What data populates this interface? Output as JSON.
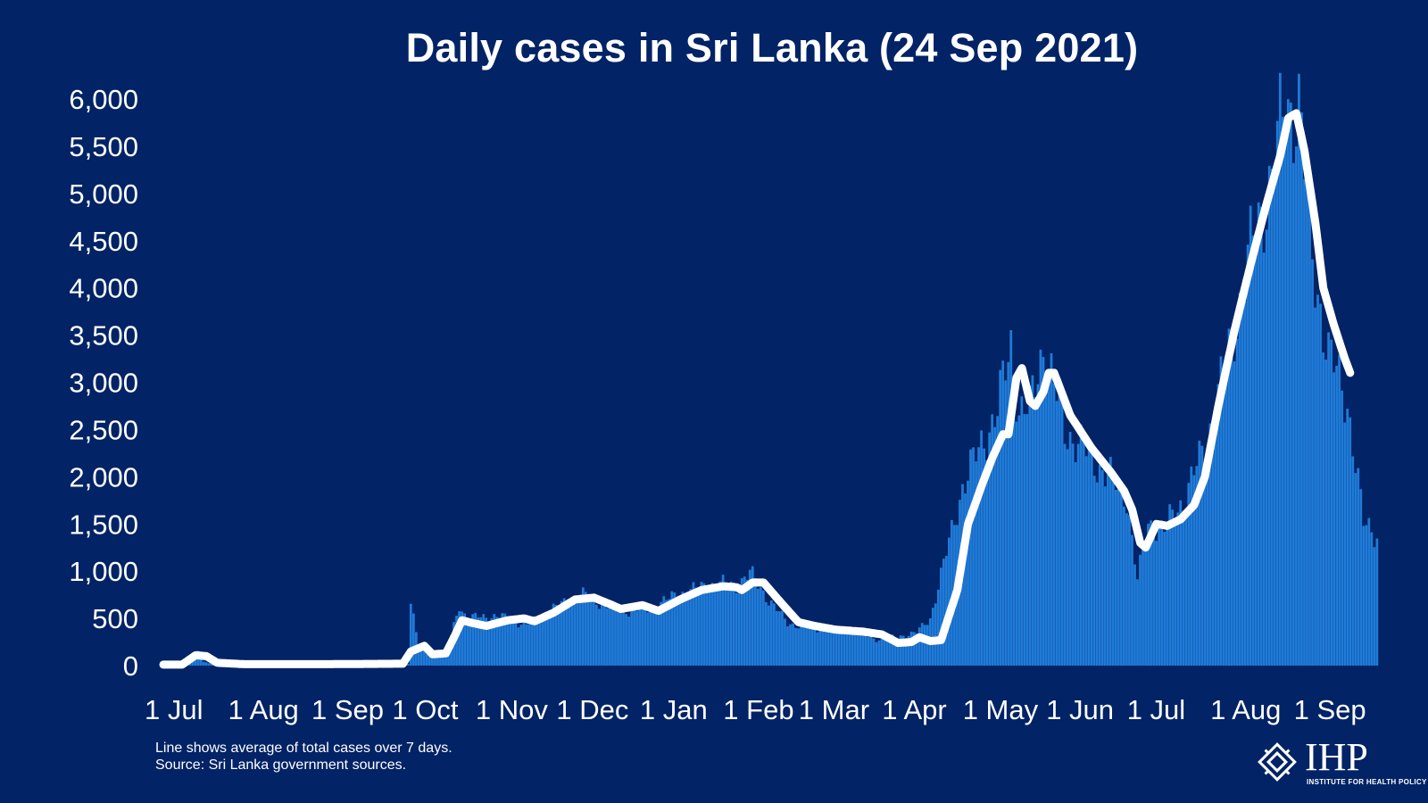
{
  "chart_data": {
    "type": "bar",
    "title": "Daily cases in Sri Lanka (24 Sep 2021)",
    "xlabel": "",
    "ylabel": "",
    "ylim": [
      0,
      6000
    ],
    "yticks": [
      "0",
      "500",
      "1,000",
      "1,500",
      "2,000",
      "2,500",
      "3,000",
      "3,500",
      "4,000",
      "4,500",
      "5,000",
      "5,500",
      "6,000"
    ],
    "xticks": [
      "1 Jul",
      "1 Aug",
      "1 Sep",
      "1 Oct",
      "1 Nov",
      "1 Dec",
      "1 Jan",
      "1 Feb",
      "1 Mar",
      "1 Apr",
      "1 May",
      "1 Jun",
      "1 Jul",
      "1 Aug",
      "1 Sep"
    ],
    "x_start": "2020-07-01",
    "x_end": "2021-09-24",
    "month_start_days": [
      0,
      31,
      62,
      92,
      123,
      153,
      184,
      215,
      243,
      274,
      304,
      335,
      365,
      396,
      427
    ],
    "total_days": 451,
    "series": [
      {
        "name": "Daily cases",
        "kind": "bars",
        "knots": [
          [
            0,
            10
          ],
          [
            10,
            60
          ],
          [
            13,
            150
          ],
          [
            15,
            40
          ],
          [
            20,
            8
          ],
          [
            60,
            10
          ],
          [
            91,
            20
          ],
          [
            92,
            700
          ],
          [
            95,
            150
          ],
          [
            100,
            170
          ],
          [
            105,
            100
          ],
          [
            110,
            650
          ],
          [
            113,
            480
          ],
          [
            117,
            520
          ],
          [
            125,
            520
          ],
          [
            135,
            430
          ],
          [
            145,
            600
          ],
          [
            155,
            760
          ],
          [
            170,
            580
          ],
          [
            180,
            600
          ],
          [
            192,
            760
          ],
          [
            205,
            870
          ],
          [
            213,
            850
          ],
          [
            218,
            980
          ],
          [
            225,
            700
          ],
          [
            232,
            450
          ],
          [
            245,
            380
          ],
          [
            255,
            380
          ],
          [
            265,
            280
          ],
          [
            272,
            300
          ],
          [
            280,
            350
          ],
          [
            285,
            500
          ],
          [
            292,
            1300
          ],
          [
            297,
            1900
          ],
          [
            305,
            2400
          ],
          [
            310,
            2700
          ],
          [
            315,
            3400
          ],
          [
            318,
            2700
          ],
          [
            322,
            2700
          ],
          [
            327,
            3400
          ],
          [
            335,
            2500
          ],
          [
            345,
            2200
          ],
          [
            358,
            1800
          ],
          [
            362,
            900
          ],
          [
            366,
            1500
          ],
          [
            372,
            1450
          ],
          [
            380,
            1800
          ],
          [
            388,
            2400
          ],
          [
            395,
            3200
          ],
          [
            405,
            4500
          ],
          [
            412,
            5200
          ],
          [
            417,
            5900
          ],
          [
            422,
            5950
          ],
          [
            427,
            4300
          ],
          [
            433,
            3300
          ],
          [
            440,
            2800
          ],
          [
            446,
            1500
          ],
          [
            451,
            1400
          ]
        ]
      },
      {
        "name": "7-day average",
        "kind": "line",
        "knots": [
          [
            0,
            10
          ],
          [
            7,
            10
          ],
          [
            12,
            110
          ],
          [
            16,
            100
          ],
          [
            20,
            30
          ],
          [
            30,
            15
          ],
          [
            60,
            15
          ],
          [
            89,
            20
          ],
          [
            92,
            150
          ],
          [
            97,
            210
          ],
          [
            100,
            120
          ],
          [
            105,
            130
          ],
          [
            108,
            300
          ],
          [
            111,
            480
          ],
          [
            115,
            450
          ],
          [
            120,
            420
          ],
          [
            128,
            480
          ],
          [
            134,
            500
          ],
          [
            138,
            470
          ],
          [
            145,
            560
          ],
          [
            153,
            700
          ],
          [
            160,
            720
          ],
          [
            166,
            650
          ],
          [
            170,
            600
          ],
          [
            178,
            640
          ],
          [
            184,
            580
          ],
          [
            192,
            700
          ],
          [
            200,
            800
          ],
          [
            208,
            840
          ],
          [
            213,
            830
          ],
          [
            215,
            800
          ],
          [
            219,
            880
          ],
          [
            223,
            880
          ],
          [
            230,
            650
          ],
          [
            236,
            460
          ],
          [
            242,
            420
          ],
          [
            250,
            380
          ],
          [
            260,
            360
          ],
          [
            267,
            330
          ],
          [
            273,
            240
          ],
          [
            278,
            250
          ],
          [
            281,
            300
          ],
          [
            285,
            260
          ],
          [
            289,
            270
          ],
          [
            295,
            800
          ],
          [
            299,
            1500
          ],
          [
            304,
            1900
          ],
          [
            308,
            2200
          ],
          [
            312,
            2450
          ],
          [
            314,
            2450
          ],
          [
            317,
            3050
          ],
          [
            319,
            3150
          ],
          [
            322,
            2800
          ],
          [
            324,
            2750
          ],
          [
            327,
            2900
          ],
          [
            329,
            3100
          ],
          [
            331,
            3100
          ],
          [
            337,
            2650
          ],
          [
            345,
            2300
          ],
          [
            352,
            2050
          ],
          [
            357,
            1850
          ],
          [
            360,
            1650
          ],
          [
            363,
            1300
          ],
          [
            365,
            1250
          ],
          [
            369,
            1500
          ],
          [
            373,
            1480
          ],
          [
            378,
            1550
          ],
          [
            383,
            1700
          ],
          [
            387,
            2000
          ],
          [
            392,
            2750
          ],
          [
            398,
            3550
          ],
          [
            404,
            4250
          ],
          [
            410,
            4900
          ],
          [
            415,
            5400
          ],
          [
            418,
            5800
          ],
          [
            421,
            5850
          ],
          [
            424,
            5450
          ],
          [
            428,
            4700
          ],
          [
            431,
            4000
          ],
          [
            435,
            3600
          ],
          [
            439,
            3250
          ],
          [
            441,
            3100
          ]
        ]
      }
    ],
    "notes": [
      "Line shows average of total cases over 7 days.",
      "Source: Sri Lanka government sources."
    ]
  },
  "colors": {
    "background": "#022365",
    "bars": "#1f7bd8",
    "line": "#ffffff",
    "text": "#ffffff"
  },
  "logo": {
    "word": "IHP",
    "subtitle": "INSTITUTE FOR HEALTH POLICY",
    "icon": "ihp-logo-icon"
  }
}
